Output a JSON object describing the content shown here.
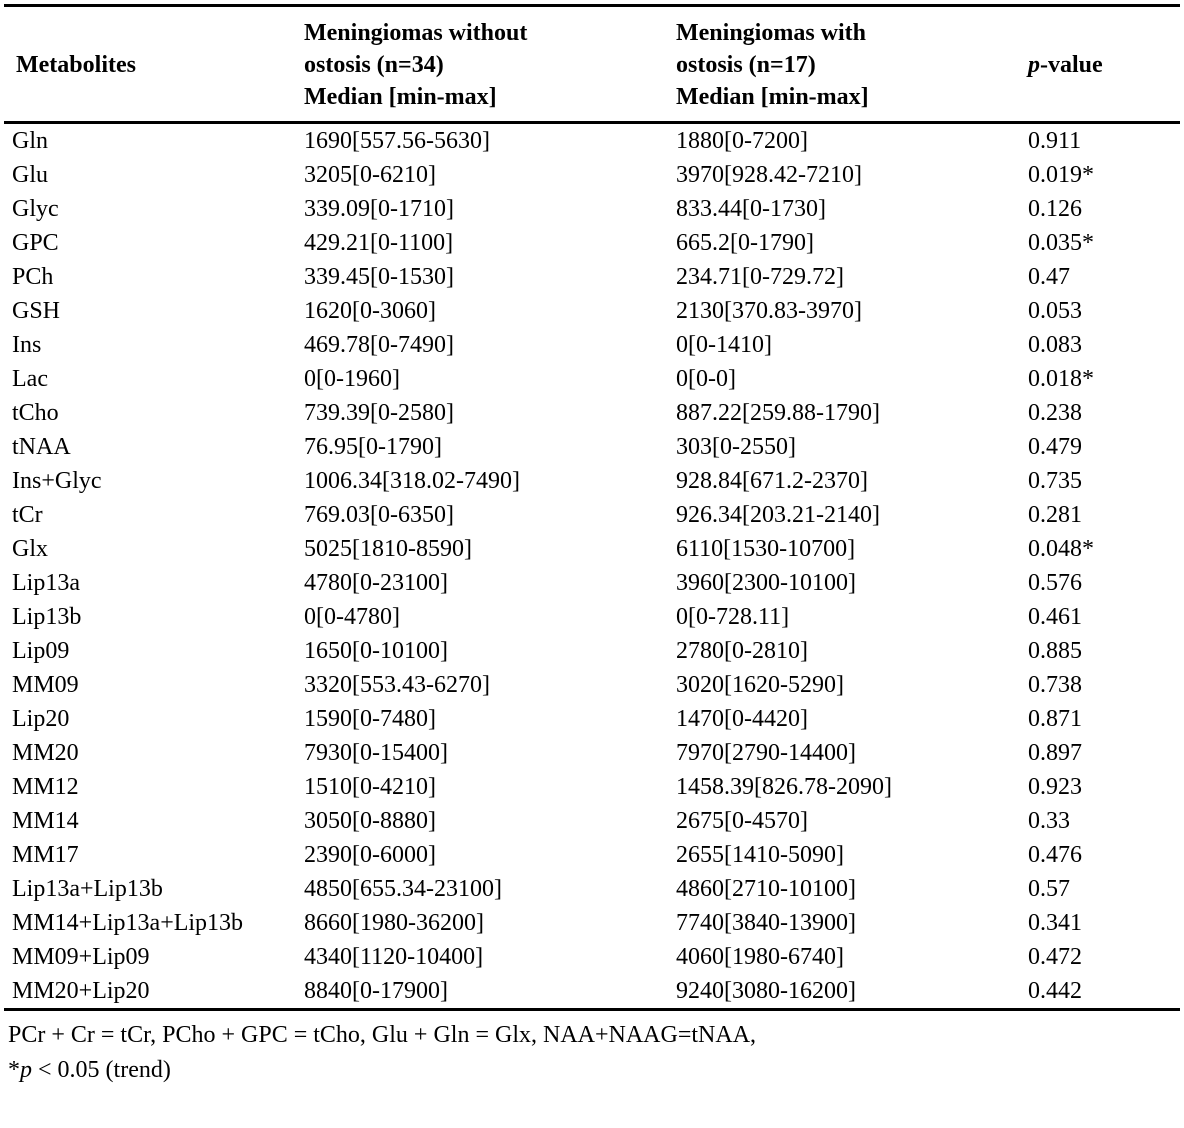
{
  "table": {
    "header": {
      "col1": "Metabolites",
      "col2_lines": [
        "Meningiomas without",
        "ostosis (n=34)",
        "Median [min-max]"
      ],
      "col3_lines": [
        "Meningiomas with",
        "ostosis (n=17)",
        "Median [min-max]"
      ],
      "col4_italic": "p",
      "col4_rest": "-value"
    },
    "rows": [
      {
        "metabolite": "Gln",
        "without": "1690[557.56-5630]",
        "with": "1880[0-7200]",
        "p": "0.911"
      },
      {
        "metabolite": "Glu",
        "without": "3205[0-6210]",
        "with": "3970[928.42-7210]",
        "p": "0.019*"
      },
      {
        "metabolite": "Glyc",
        "without": "339.09[0-1710]",
        "with": "833.44[0-1730]",
        "p": "0.126"
      },
      {
        "metabolite": "GPC",
        "without": "429.21[0-1100]",
        "with": "665.2[0-1790]",
        "p": "0.035*"
      },
      {
        "metabolite": "PCh",
        "without": "339.45[0-1530]",
        "with": "234.71[0-729.72]",
        "p": "0.47"
      },
      {
        "metabolite": "GSH",
        "without": "1620[0-3060]",
        "with": "2130[370.83-3970]",
        "p": "0.053"
      },
      {
        "metabolite": "Ins",
        "without": "469.78[0-7490]",
        "with": "0[0-1410]",
        "p": "0.083"
      },
      {
        "metabolite": "Lac",
        "without": "0[0-1960]",
        "with": "0[0-0]",
        "p": "0.018*"
      },
      {
        "metabolite": "tCho",
        "without": "739.39[0-2580]",
        "with": "887.22[259.88-1790]",
        "p": "0.238"
      },
      {
        "metabolite": "tNAA",
        "without": "76.95[0-1790]",
        "with": "303[0-2550]",
        "p": "0.479"
      },
      {
        "metabolite": "Ins+Glyc",
        "without": "1006.34[318.02-7490]",
        "with": "928.84[671.2-2370]",
        "p": "0.735"
      },
      {
        "metabolite": "tCr",
        "without": "769.03[0-6350]",
        "with": "926.34[203.21-2140]",
        "p": "0.281"
      },
      {
        "metabolite": "Glx",
        "without": "5025[1810-8590]",
        "with": "6110[1530-10700]",
        "p": "0.048*"
      },
      {
        "metabolite": "Lip13a",
        "without": "4780[0-23100]",
        "with": "3960[2300-10100]",
        "p": "0.576"
      },
      {
        "metabolite": "Lip13b",
        "without": "0[0-4780]",
        "with": "0[0-728.11]",
        "p": "0.461"
      },
      {
        "metabolite": "Lip09",
        "without": "1650[0-10100]",
        "with": "2780[0-2810]",
        "p": "0.885"
      },
      {
        "metabolite": "MM09",
        "without": "3320[553.43-6270]",
        "with": "3020[1620-5290]",
        "p": "0.738"
      },
      {
        "metabolite": "Lip20",
        "without": "1590[0-7480]",
        "with": "1470[0-4420]",
        "p": "0.871"
      },
      {
        "metabolite": "MM20",
        "without": "7930[0-15400]",
        "with": "7970[2790-14400]",
        "p": "0.897"
      },
      {
        "metabolite": "MM12",
        "without": "1510[0-4210]",
        "with": "1458.39[826.78-2090]",
        "p": "0.923"
      },
      {
        "metabolite": "MM14",
        "without": "3050[0-8880]",
        "with": "2675[0-4570]",
        "p": "0.33"
      },
      {
        "metabolite": "MM17",
        "without": "2390[0-6000]",
        "with": "2655[1410-5090]",
        "p": "0.476"
      },
      {
        "metabolite": "Lip13a+Lip13b",
        "without": "4850[655.34-23100]",
        "with": "4860[2710-10100]",
        "p": "0.57"
      },
      {
        "metabolite": "MM14+Lip13a+Lip13b",
        "without": "8660[1980-36200]",
        "with": "7740[3840-13900]",
        "p": "0.341"
      },
      {
        "metabolite": "MM09+Lip09",
        "without": "4340[1120-10400]",
        "with": "4060[1980-6740]",
        "p": "0.472"
      },
      {
        "metabolite": "MM20+Lip20",
        "without": "8840[0-17900]",
        "with": "9240[3080-16200]",
        "p": "0.442"
      }
    ],
    "footnotes": {
      "line1": "PCr + Cr = tCr, PCho + GPC = tCho, Glu + Gln = Glx, NAA+NAAG=tNAA,",
      "line2_star": "*",
      "line2_italic": "p",
      "line2_rest": " < 0.05 (trend)"
    }
  },
  "colors": {
    "text": "#000000",
    "background": "#ffffff",
    "rule": "#000000"
  }
}
